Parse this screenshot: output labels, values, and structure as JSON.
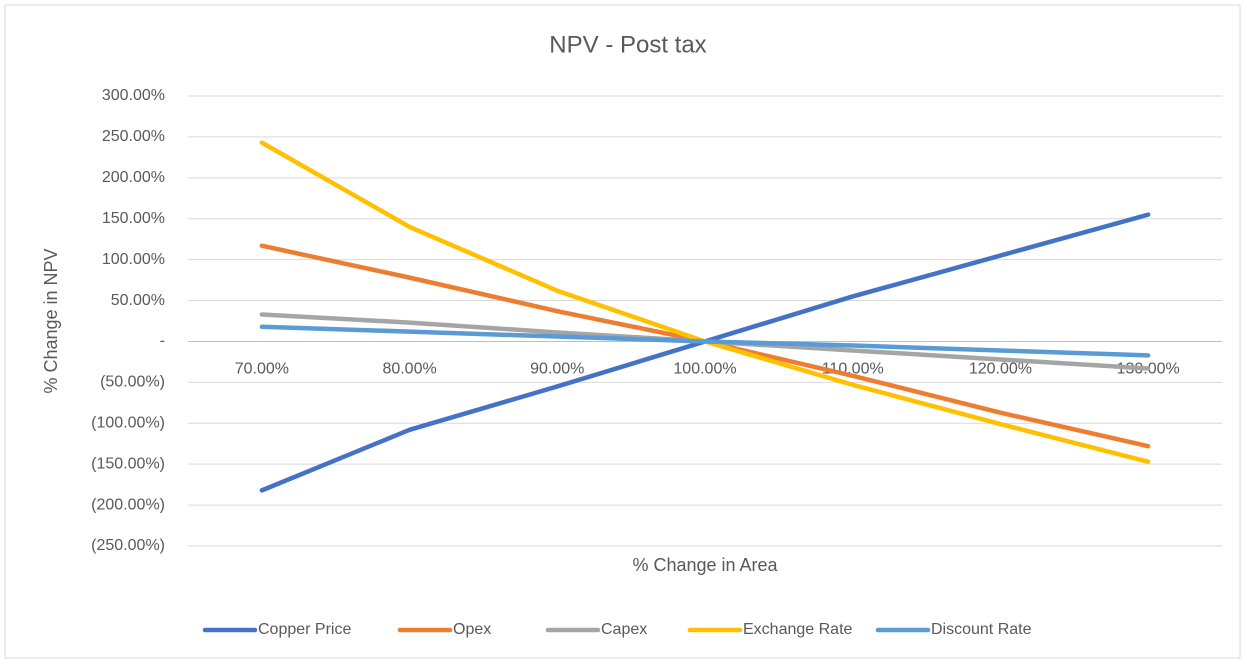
{
  "chart_data": {
    "type": "line",
    "title": "NPV - Post tax",
    "x_label": "% Change in Area",
    "y_label": "% Change in NPV",
    "categories": [
      "70.00%",
      "80.00%",
      "90.00%",
      "100.00%",
      "110.00%",
      "120.00%",
      "130.00%"
    ],
    "series": [
      {
        "name": "Copper Price",
        "color": "#4472c4",
        "values": [
          -182,
          -108,
          -55,
          0,
          55,
          105,
          155
        ]
      },
      {
        "name": "Opex",
        "color": "#ed7d31",
        "values": [
          117,
          78,
          37,
          0,
          -42,
          -87,
          -128
        ]
      },
      {
        "name": "Capex",
        "color": "#a5a5a5",
        "values": [
          33,
          23,
          11,
          0,
          -11,
          -22,
          -33
        ]
      },
      {
        "name": "Exchange Rate",
        "color": "#ffc000",
        "values": [
          243,
          140,
          62,
          0,
          -53,
          -101,
          -147
        ]
      },
      {
        "name": "Discount Rate",
        "color": "#5b9bd5",
        "values": [
          18,
          12,
          6,
          0,
          -5,
          -11,
          -17
        ]
      }
    ],
    "ylim": [
      -250,
      300
    ],
    "yticks": [
      {
        "value": -250,
        "label": "(250.00%)"
      },
      {
        "value": -200,
        "label": "(200.00%)"
      },
      {
        "value": -150,
        "label": "(150.00%)"
      },
      {
        "value": -100,
        "label": "(100.00%)"
      },
      {
        "value": -50,
        "label": "(50.00%)"
      },
      {
        "value": 0,
        "label": "-"
      },
      {
        "value": 50,
        "label": "50.00%"
      },
      {
        "value": 100,
        "label": "100.00%"
      },
      {
        "value": 150,
        "label": "150.00%"
      },
      {
        "value": 200,
        "label": "200.00%"
      },
      {
        "value": 250,
        "label": "250.00%"
      },
      {
        "value": 300,
        "label": "300.00%"
      }
    ],
    "grid": true,
    "legend": "bottom"
  }
}
